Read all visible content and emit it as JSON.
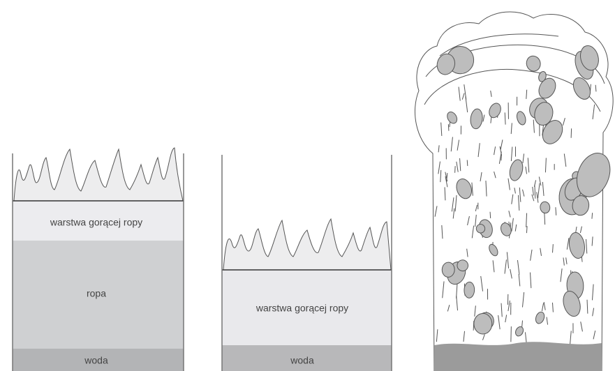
{
  "panels": [
    {
      "layers": [
        "warstwa gorącej ropy",
        "ropa",
        "woda"
      ]
    },
    {
      "layers": [
        "warstwa gorącej ropy",
        "woda"
      ]
    }
  ]
}
